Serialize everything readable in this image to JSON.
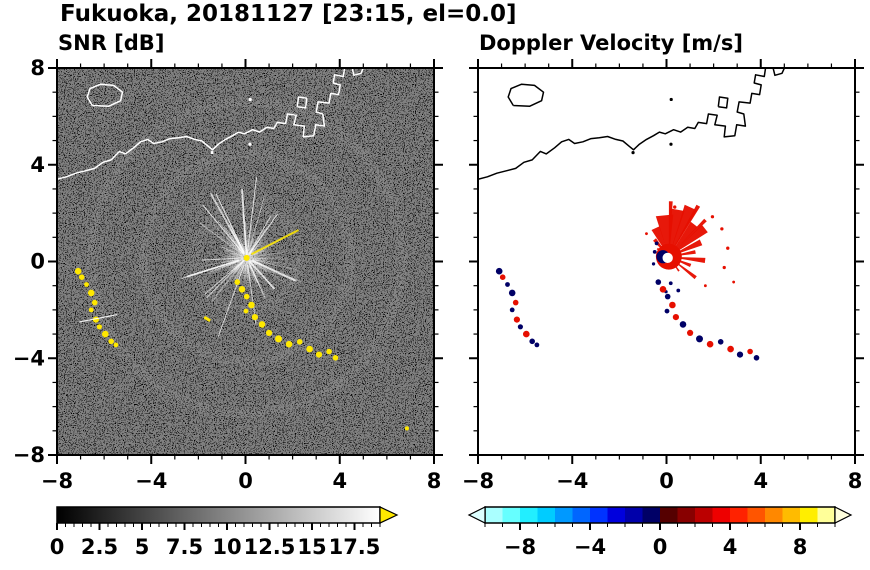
{
  "figure": {
    "title": "Fukuoka, 20181127 [23:15, el=0.0]"
  },
  "chart_data": {
    "type": "heatmap",
    "title": "Fukuoka, 20181127 [23:15, el=0.0]",
    "axes": {
      "xlim": [
        -8,
        8
      ],
      "ylim": [
        -8,
        8
      ],
      "tick_values": [
        -8,
        -4,
        0,
        4,
        8
      ],
      "tick_labels": [
        "−8",
        "−4",
        "0",
        "4",
        "8"
      ],
      "minor_step": 1
    },
    "panels": [
      {
        "id": "snr",
        "title": "SNR [dB]",
        "background": "#000000",
        "description": "Black PPI panel: radial ground-clutter streaks around radar at origin, yellow arc echoes to the southwest and south-southeast, white coastline along the north.",
        "colorbar": {
          "min": 0,
          "max": 19,
          "label_values": [
            0,
            2.5,
            5,
            7.5,
            10,
            12.5,
            15,
            17.5
          ],
          "labels": [
            "0",
            "2.5",
            "5",
            "7.5",
            "10",
            "12.5",
            "15",
            "17.5"
          ],
          "minor_step": 0.5,
          "gradient": [
            "#000000",
            "#FFFFFF"
          ],
          "over_color": "#FFE800"
        }
      },
      {
        "id": "velocity",
        "title": "Doppler Velocity [m/s]",
        "background": "#FFFFFF",
        "description": "White PPI panel: red (away) velocity fan near the radar origin with small dark-blue (toward) cells, mixed red/blue echo arcs, black coastline along the north.",
        "colorbar": {
          "min": -10,
          "max": 10,
          "label_values": [
            -8,
            -4,
            0,
            4,
            8
          ],
          "labels": [
            "−8",
            "−4",
            "0",
            "4",
            "8"
          ],
          "minor_step": 1,
          "segment_colors": [
            "#AAFFFF",
            "#66FFFF",
            "#22EEFF",
            "#00CCFF",
            "#0099FF",
            "#0066FF",
            "#0033FF",
            "#0000DD",
            "#0000AA",
            "#000066",
            "#550000",
            "#880000",
            "#BB0000",
            "#EE0000",
            "#FF2200",
            "#FF5500",
            "#FF8800",
            "#FFBB00",
            "#FFEE00",
            "#FFFF99"
          ],
          "under_color": "#DDFFFF",
          "over_color": "#FFFFDD"
        }
      }
    ],
    "coastline": {
      "snr_color": "#FFFFFF",
      "velocity_color": "#000000",
      "paths": [
        [
          [
            -8,
            3.4
          ],
          [
            -7.6,
            3.5
          ],
          [
            -7.2,
            3.65
          ],
          [
            -6.8,
            3.75
          ],
          [
            -6.4,
            3.85
          ],
          [
            -6.05,
            4.1
          ],
          [
            -5.7,
            4.2
          ],
          [
            -5.35,
            4.55
          ],
          [
            -5.1,
            4.45
          ],
          [
            -4.75,
            4.7
          ],
          [
            -4.45,
            4.95
          ],
          [
            -4.15,
            5.05
          ],
          [
            -3.9,
            4.88
          ],
          [
            -3.55,
            4.95
          ],
          [
            -3.2,
            5.08
          ],
          [
            -2.85,
            5.12
          ],
          [
            -2.5,
            5.17
          ],
          [
            -2.15,
            5.05
          ],
          [
            -1.85,
            4.98
          ],
          [
            -1.6,
            4.78
          ],
          [
            -1.4,
            4.62
          ],
          [
            -1.15,
            4.85
          ],
          [
            -0.85,
            5.05
          ],
          [
            -0.55,
            5.2
          ],
          [
            -0.3,
            5.35
          ],
          [
            -0.05,
            5.28
          ],
          [
            0.3,
            5.45
          ],
          [
            0.6,
            5.35
          ],
          [
            0.9,
            5.55
          ],
          [
            1.2,
            5.5
          ],
          [
            1.35,
            5.75
          ],
          [
            1.7,
            5.7
          ],
          [
            1.78,
            6.1
          ],
          [
            2.15,
            6.05
          ],
          [
            2.05,
            5.65
          ],
          [
            2.5,
            5.6
          ],
          [
            2.45,
            5.15
          ],
          [
            2.9,
            5.2
          ],
          [
            2.98,
            5.65
          ],
          [
            3.35,
            5.6
          ],
          [
            3.28,
            6.1
          ],
          [
            3.0,
            6.18
          ],
          [
            3.08,
            6.6
          ],
          [
            3.55,
            6.55
          ],
          [
            3.62,
            6.95
          ],
          [
            3.95,
            6.9
          ],
          [
            4.02,
            7.3
          ],
          [
            3.72,
            7.38
          ],
          [
            3.78,
            7.72
          ],
          [
            4.15,
            7.65
          ],
          [
            4.22,
            8.1
          ]
        ],
        [
          [
            -6.5,
            6.45
          ],
          [
            -6.72,
            6.8
          ],
          [
            -6.6,
            7.15
          ],
          [
            -6.15,
            7.33
          ],
          [
            -5.6,
            7.28
          ],
          [
            -5.22,
            7.0
          ],
          [
            -5.3,
            6.65
          ],
          [
            -5.8,
            6.42
          ],
          [
            -6.5,
            6.45
          ]
        ],
        [
          [
            2.2,
            6.4
          ],
          [
            2.55,
            6.35
          ],
          [
            2.6,
            6.75
          ],
          [
            2.25,
            6.8
          ],
          [
            2.2,
            6.4
          ]
        ],
        [
          [
            4.5,
            8.1
          ],
          [
            4.6,
            7.7
          ],
          [
            4.9,
            7.78
          ],
          [
            5.05,
            8.1
          ]
        ]
      ],
      "dots": [
        [
          -1.42,
          4.5
        ],
        [
          0.19,
          4.85
        ],
        [
          0.2,
          6.7
        ]
      ]
    },
    "snr_features": {
      "clutter_center": [
        0.05,
        0.15
      ],
      "streak_count": 120,
      "streak_color": "#FFFFFF",
      "ring_radii": [
        2.2,
        4.4,
        6.6
      ],
      "echo_color": "#FFE800",
      "chains": [
        [
          [
            -7.1,
            -0.4,
            0.14
          ],
          [
            -6.95,
            -0.65,
            0.12
          ],
          [
            -6.75,
            -0.95,
            0.1
          ],
          [
            -6.55,
            -1.3,
            0.14
          ],
          [
            -6.4,
            -1.7,
            0.12
          ],
          [
            -6.55,
            -2.0,
            0.1
          ],
          [
            -6.35,
            -2.4,
            0.13
          ],
          [
            -6.2,
            -2.7,
            0.11
          ],
          [
            -5.95,
            -3.0,
            0.14
          ],
          [
            -5.7,
            -3.3,
            0.12
          ],
          [
            -5.5,
            -3.45,
            0.1
          ]
        ],
        [
          [
            -0.35,
            -0.85,
            0.12
          ],
          [
            -0.15,
            -1.15,
            0.14
          ],
          [
            0.05,
            -1.45,
            0.12
          ],
          [
            0.25,
            -1.8,
            0.14
          ],
          [
            0.02,
            -2.05,
            0.1
          ],
          [
            0.4,
            -2.3,
            0.13
          ],
          [
            0.7,
            -2.6,
            0.14
          ],
          [
            1.0,
            -2.95,
            0.13
          ],
          [
            1.4,
            -3.2,
            0.15
          ],
          [
            1.85,
            -3.42,
            0.14
          ],
          [
            2.3,
            -3.32,
            0.12
          ],
          [
            2.72,
            -3.62,
            0.14
          ],
          [
            3.12,
            -3.85,
            0.13
          ],
          [
            3.55,
            -3.72,
            0.12
          ],
          [
            3.82,
            -3.98,
            0.12
          ]
        ]
      ],
      "yellow_streak": [
        [
          0.25,
          0.3
        ],
        [
          2.25,
          1.3
        ]
      ],
      "yellow_dashes": [
        [
          [
            -1.75,
            -2.3
          ],
          [
            -1.5,
            -2.45
          ]
        ]
      ],
      "white_dashes": [
        [
          [
            -7.05,
            -2.5
          ],
          [
            -5.45,
            -2.2
          ]
        ]
      ],
      "specks": [
        [
          6.85,
          -6.9
        ]
      ]
    },
    "velocity_features": {
      "center": [
        0.1,
        0.2
      ],
      "away_color": "#E60F00",
      "toward_color": "#000066",
      "core_radius": 0.55,
      "fan_wedges": [
        [
          96,
          12,
          1.8
        ],
        [
          80,
          9,
          2.05
        ],
        [
          66,
          7,
          2.3
        ],
        [
          52,
          6,
          1.75
        ],
        [
          38,
          6,
          1.95
        ],
        [
          24,
          5,
          1.5
        ],
        [
          10,
          4,
          1.15
        ],
        [
          115,
          8,
          1.35
        ],
        [
          130,
          5,
          0.95
        ],
        [
          145,
          4,
          0.6
        ],
        [
          -6,
          4,
          1.55
        ],
        [
          -22,
          4,
          1.0
        ],
        [
          -38,
          3,
          1.45
        ],
        [
          -55,
          3,
          0.75
        ],
        [
          60,
          2,
          2.5
        ],
        [
          88,
          2,
          2.35
        ],
        [
          45,
          2,
          2.2
        ]
      ],
      "hole": {
        "pos": [
          0.05,
          0.15
        ],
        "radius": 0.22
      },
      "crescent": {
        "pos": [
          -0.15,
          0.2
        ],
        "radius": 0.28
      },
      "red_dots": [
        [
          1.95,
          1.85,
          0.07
        ],
        [
          2.35,
          1.35,
          0.07
        ],
        [
          2.6,
          0.55,
          0.07
        ],
        [
          2.45,
          -0.25,
          0.07
        ],
        [
          2.85,
          -0.85,
          0.06
        ],
        [
          1.65,
          -1.0,
          0.06
        ],
        [
          -0.85,
          1.15,
          0.06
        ],
        [
          0.35,
          2.25,
          0.07
        ]
      ],
      "navy_dots": [
        [
          -0.5,
          0.4,
          0.08
        ],
        [
          -0.42,
          0.75,
          0.08
        ],
        [
          -0.55,
          -0.1,
          0.07
        ],
        [
          0.18,
          -0.9,
          0.08
        ],
        [
          0.5,
          -1.2,
          0.08
        ],
        [
          -0.02,
          -1.25,
          0.07
        ]
      ],
      "blobs": [
        [
          -7.1,
          -0.4,
          0.14,
          -1
        ],
        [
          -6.95,
          -0.65,
          0.12,
          1
        ],
        [
          -6.75,
          -0.95,
          0.1,
          -1
        ],
        [
          -6.55,
          -1.3,
          0.14,
          -1
        ],
        [
          -6.4,
          -1.7,
          0.12,
          1
        ],
        [
          -6.55,
          -2.0,
          0.1,
          -1
        ],
        [
          -6.35,
          -2.4,
          0.13,
          1
        ],
        [
          -6.2,
          -2.7,
          0.11,
          -1
        ],
        [
          -5.95,
          -3.0,
          0.14,
          1
        ],
        [
          -5.7,
          -3.3,
          0.12,
          -1
        ],
        [
          -5.5,
          -3.45,
          0.1,
          -1
        ],
        [
          -0.35,
          -0.85,
          0.12,
          -1
        ],
        [
          -0.15,
          -1.15,
          0.14,
          1
        ],
        [
          0.05,
          -1.45,
          0.12,
          -1
        ],
        [
          0.25,
          -1.8,
          0.14,
          1
        ],
        [
          0.02,
          -2.05,
          0.1,
          -1
        ],
        [
          0.4,
          -2.3,
          0.13,
          1
        ],
        [
          0.7,
          -2.6,
          0.14,
          -1
        ],
        [
          1.0,
          -2.95,
          0.13,
          1
        ],
        [
          1.4,
          -3.2,
          0.15,
          -1
        ],
        [
          1.85,
          -3.42,
          0.14,
          1
        ],
        [
          2.3,
          -3.32,
          0.12,
          -1
        ],
        [
          2.72,
          -3.62,
          0.14,
          1
        ],
        [
          3.12,
          -3.85,
          0.13,
          -1
        ],
        [
          3.55,
          -3.72,
          0.12,
          1
        ],
        [
          3.82,
          -3.98,
          0.12,
          -1
        ]
      ]
    }
  }
}
